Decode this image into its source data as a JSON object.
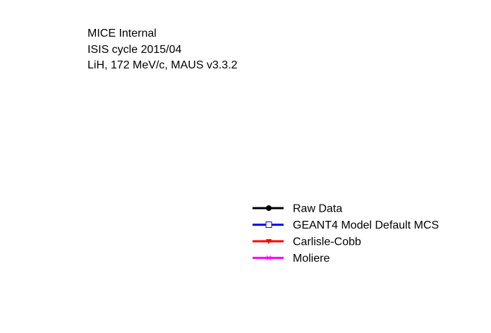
{
  "chart_data": {
    "type": "line",
    "title_lines": [
      "MICE Internal",
      "ISIS cycle 2015/04",
      "LiH, 172 MeV/c, MAUS v3.3.2"
    ],
    "legend_placement": "bottom-right",
    "series": [
      {
        "name": "Raw Data",
        "color": "#000000",
        "marker": "filled-circle",
        "values": []
      },
      {
        "name": "GEANT4 Model Default MCS",
        "color": "#0000ff",
        "marker": "open-square",
        "values": []
      },
      {
        "name": "Carlisle-Cobb",
        "color": "#ff0000",
        "marker": "filled-triangle-down",
        "values": []
      },
      {
        "name": "Moliere",
        "color": "#ff00ff",
        "marker": "cross",
        "values": []
      }
    ]
  }
}
